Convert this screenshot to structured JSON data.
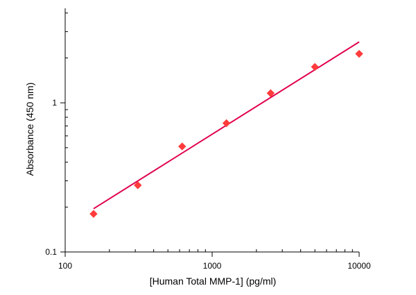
{
  "chart_data": {
    "type": "scatter",
    "title": "",
    "xlabel": "[Human Total MMP-1] (pg/ml)",
    "ylabel": "Absorbance (450 nm)",
    "x_scale": "log",
    "y_scale": "log",
    "xlim": [
      100,
      10000
    ],
    "ylim": [
      0.1,
      4.3
    ],
    "x_tick_labels": [
      "100",
      "1000",
      "10000"
    ],
    "y_tick_labels": [
      "0.1",
      "1"
    ],
    "grid": false,
    "legend": "none",
    "series": [
      {
        "x": [
          156,
          312,
          625,
          1250,
          2500,
          5000,
          10000
        ],
        "y": [
          0.18,
          0.28,
          0.51,
          0.73,
          1.16,
          1.74,
          2.13
        ],
        "marker": "diamond",
        "color": "#ff3b3b"
      }
    ],
    "fit_line": {
      "x": [
        156,
        10000
      ],
      "y": [
        0.195,
        2.56
      ],
      "color": "#e0004e"
    }
  }
}
